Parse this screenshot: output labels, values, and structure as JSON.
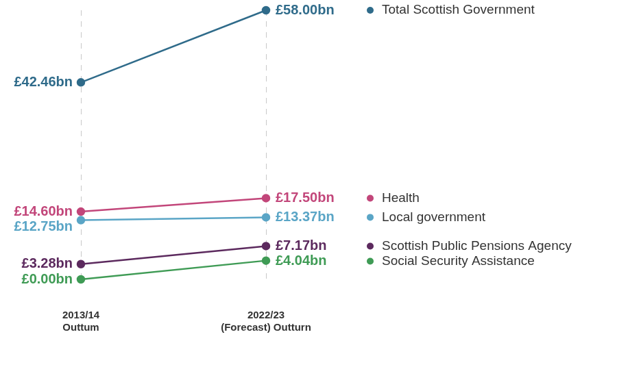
{
  "chart_data": {
    "type": "line",
    "categories": [
      "2013/14\nOuttum",
      "2022/23\n(Forecast) Outturn"
    ],
    "series": [
      {
        "name": "Total Scottish Government",
        "color": "#2f6b8a",
        "values": [
          42.46,
          58.0
        ],
        "value_labels": [
          "£42.46bn",
          "£58.00bn"
        ]
      },
      {
        "name": "Health",
        "color": "#c2467a",
        "values": [
          14.6,
          17.5
        ],
        "value_labels": [
          "£14.60bn",
          "£17.50bn"
        ]
      },
      {
        "name": "Local government",
        "color": "#5aa5c6",
        "values": [
          12.75,
          13.37
        ],
        "value_labels": [
          "£12.75bn",
          "£13.37bn"
        ]
      },
      {
        "name": "Scottish Public Pensions Agency",
        "color": "#5c2a5e",
        "values": [
          3.28,
          7.17
        ],
        "value_labels": [
          "£3.28bn",
          "£7.17bn"
        ]
      },
      {
        "name": "Social Security Assistance",
        "color": "#3f9b55",
        "values": [
          0.0,
          4.04
        ],
        "value_labels": [
          "£0.00bn",
          "£4.04bn"
        ]
      }
    ],
    "ylim": [
      0,
      58
    ],
    "grid": true,
    "data_labels": true,
    "tick_labels": "x",
    "marker": "circle"
  }
}
